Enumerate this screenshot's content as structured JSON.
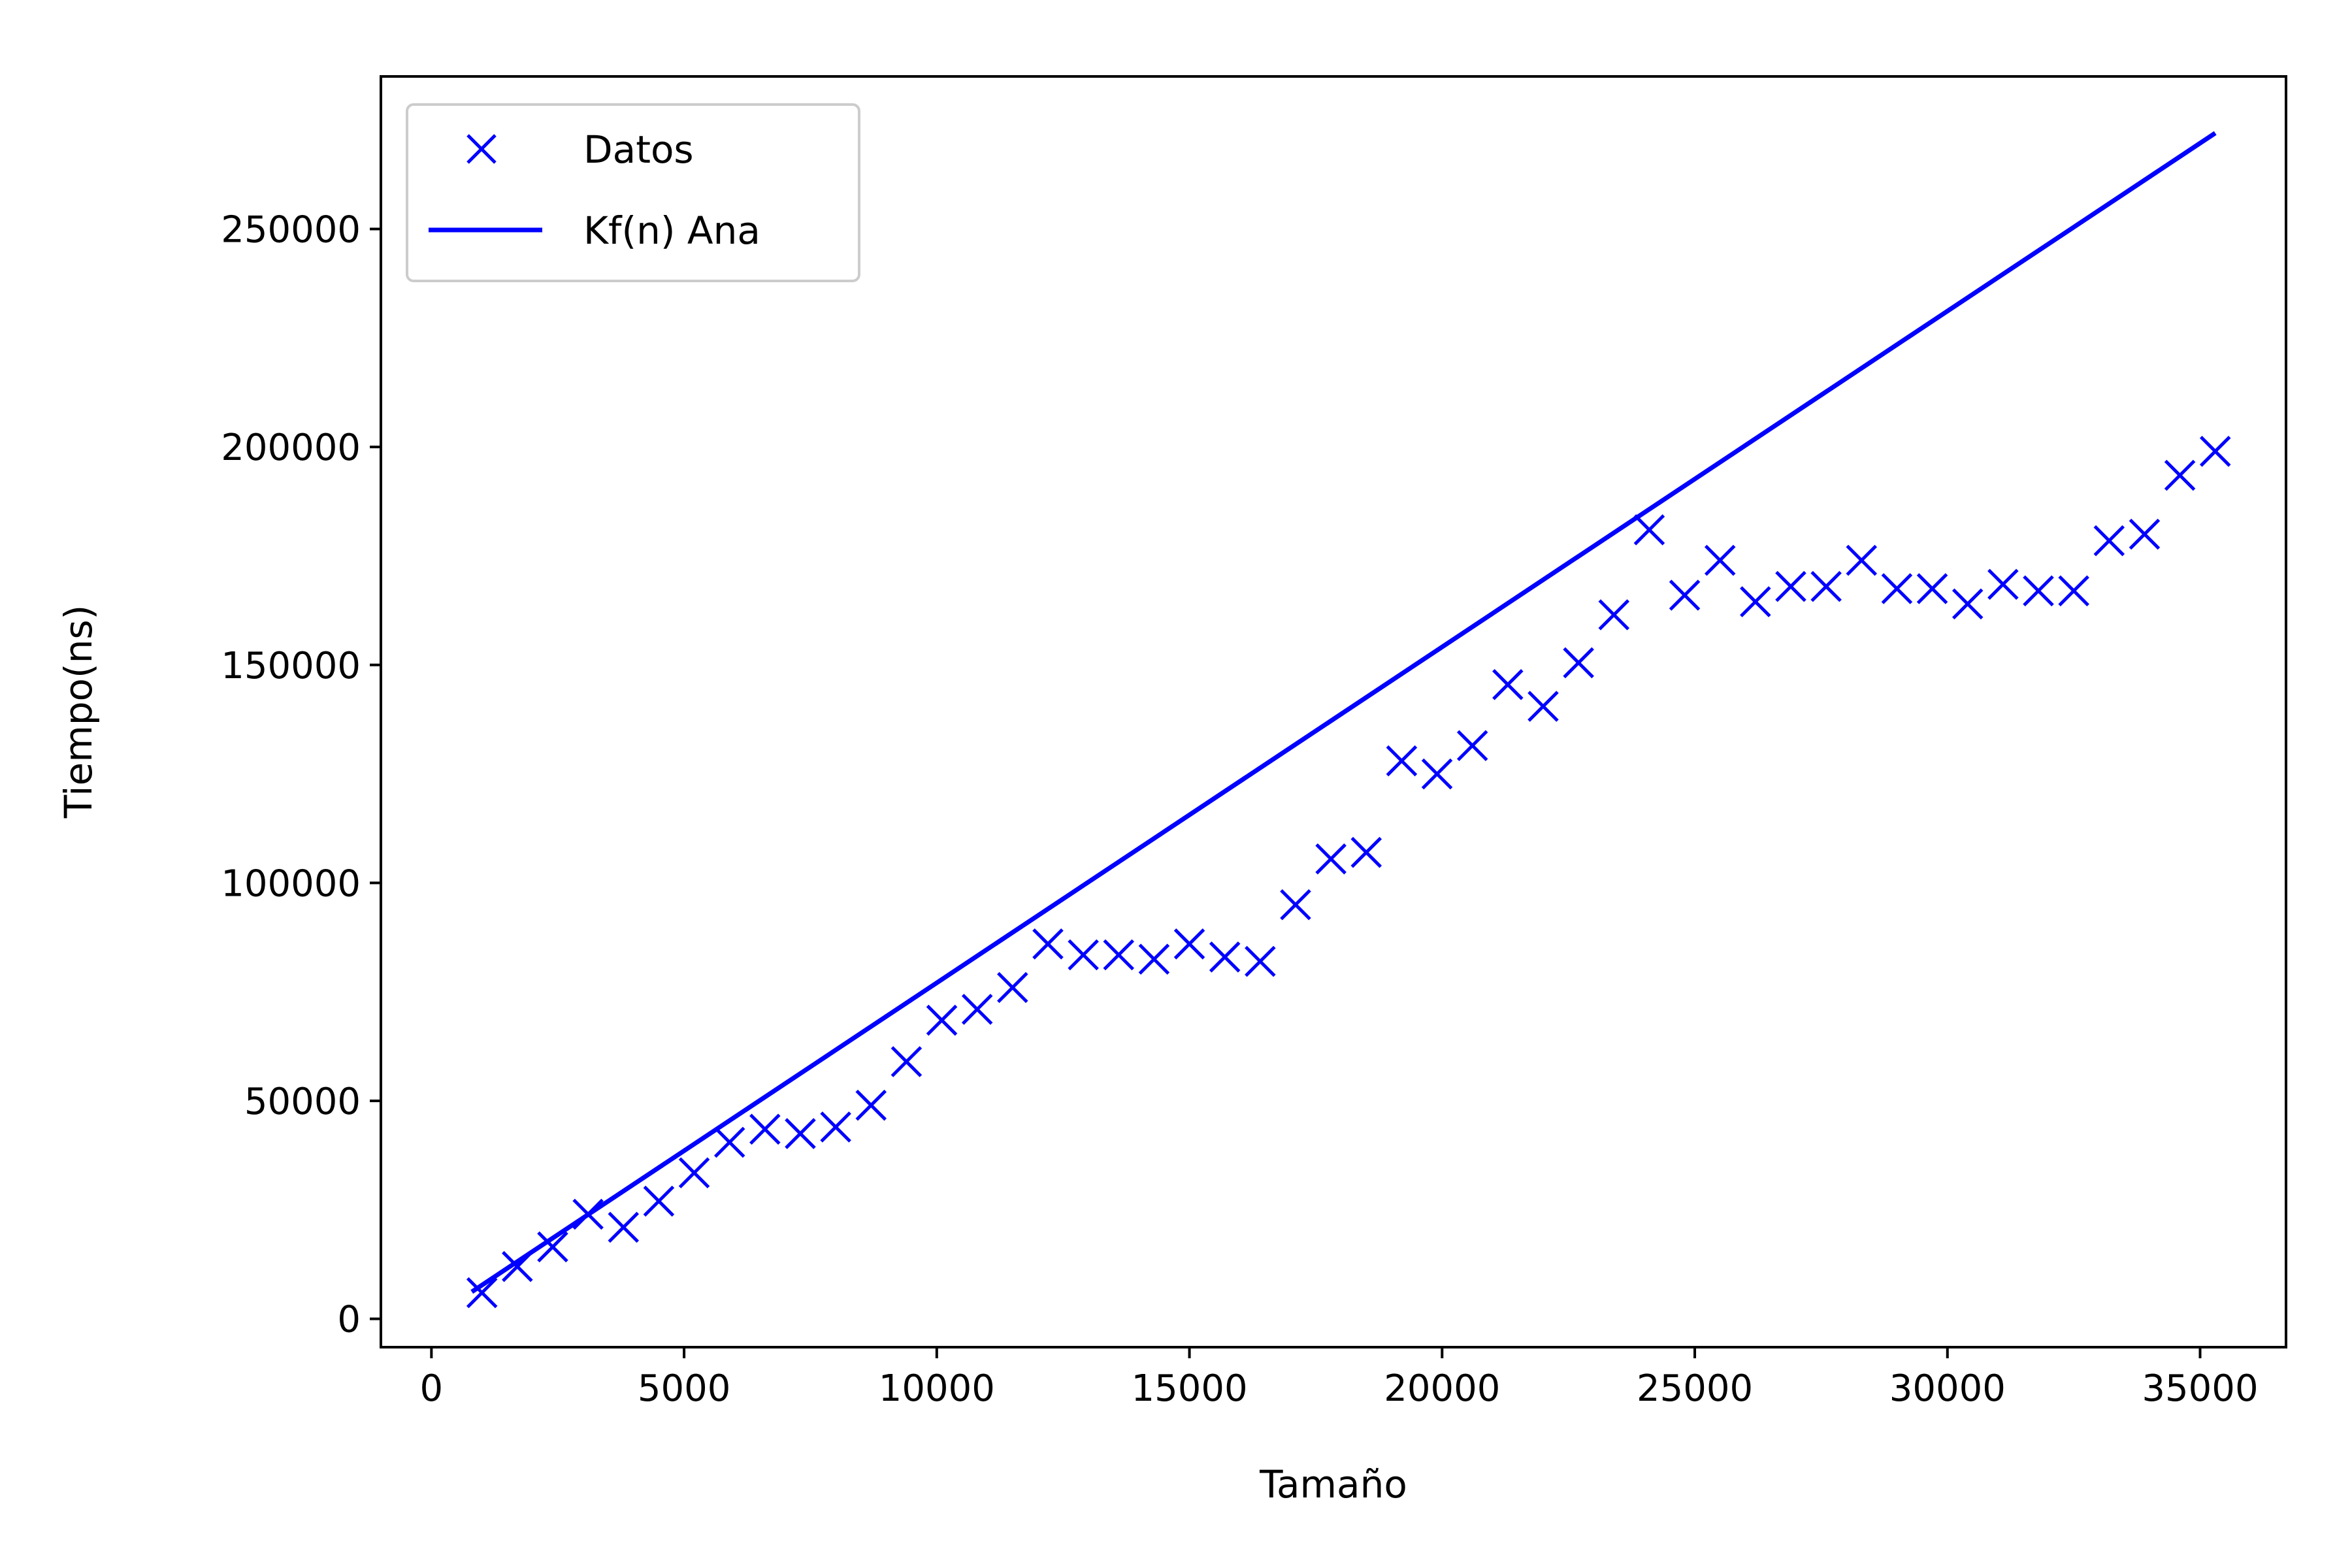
{
  "chart_data": {
    "type": "scatter",
    "xlabel": "Tamaño",
    "ylabel": "Tiempo(ns)",
    "xlim": [
      -1000,
      36700
    ],
    "ylim": [
      -6500,
      285000
    ],
    "x_ticks": [
      0,
      5000,
      10000,
      15000,
      20000,
      25000,
      30000,
      35000
    ],
    "x_tick_labels": [
      "0",
      "5000",
      "10000",
      "15000",
      "20000",
      "25000",
      "30000",
      "35000"
    ],
    "y_ticks": [
      0,
      50000,
      100000,
      150000,
      200000,
      250000
    ],
    "y_tick_labels": [
      "0",
      "50000",
      "100000",
      "150000",
      "200000",
      "250000"
    ],
    "grid": false,
    "legend_position": "top-left",
    "color": "#0000ff",
    "series": [
      {
        "name": "Datos",
        "marker": "x",
        "x": [
          1000,
          1700,
          2400,
          3100,
          3800,
          4500,
          5200,
          5900,
          6600,
          7300,
          8000,
          8700,
          9400,
          10100,
          10800,
          11500,
          12200,
          12900,
          13600,
          14300,
          15000,
          15700,
          16400,
          17100,
          17800,
          18500,
          19200,
          19900,
          20600,
          21300,
          22000,
          22700,
          23400,
          24100,
          24800,
          25500,
          26200,
          26900,
          27600,
          28300,
          29000,
          29700,
          30400,
          31100,
          31800,
          32500,
          33200,
          33900,
          34600,
          35300
        ],
        "y": [
          6000,
          12000,
          16500,
          24000,
          21000,
          27000,
          33500,
          40500,
          43500,
          42500,
          44000,
          49000,
          59000,
          68500,
          71000,
          76000,
          86000,
          83500,
          83500,
          82500,
          86000,
          83000,
          82000,
          95000,
          105500,
          107000,
          128000,
          125000,
          131500,
          145500,
          140500,
          150500,
          161500,
          181000,
          166000,
          174000,
          164500,
          168000,
          168000,
          174000,
          167500,
          167500,
          164000,
          168500,
          167000,
          167000,
          178500,
          180000,
          193500,
          199000
        ]
      },
      {
        "name": "Kf(n) Ana",
        "style": "line",
        "x": [
          800,
          35300
        ],
        "y": [
          6200,
          272000
        ]
      }
    ]
  }
}
